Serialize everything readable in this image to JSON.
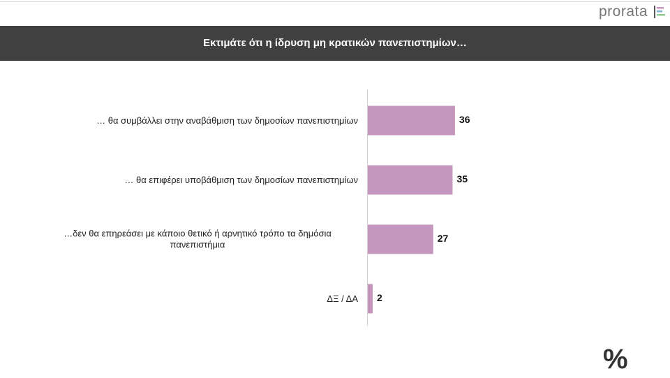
{
  "logo": "prorata",
  "footer_symbol": "%",
  "chart_data": {
    "type": "bar",
    "orientation": "horizontal",
    "title": "Εκτιμάτε ότι η ίδρυση μη κρατικών πανεπιστημίων…",
    "categories": [
      "… θα συμβάλλει στην αναβάθμιση των δημοσίων πανεπιστημίων",
      "… θα επιφέρει υποβάθμιση των δημοσίων πανεπιστημίων",
      "…δεν θα επηρεάσει με κάποιο θετικό ή αρνητικό τρόπο τα δημόσια πανεπιστήμια",
      "ΔΞ / ΔΑ"
    ],
    "values": [
      36,
      35,
      27,
      2
    ],
    "color": "#c596bd"
  }
}
